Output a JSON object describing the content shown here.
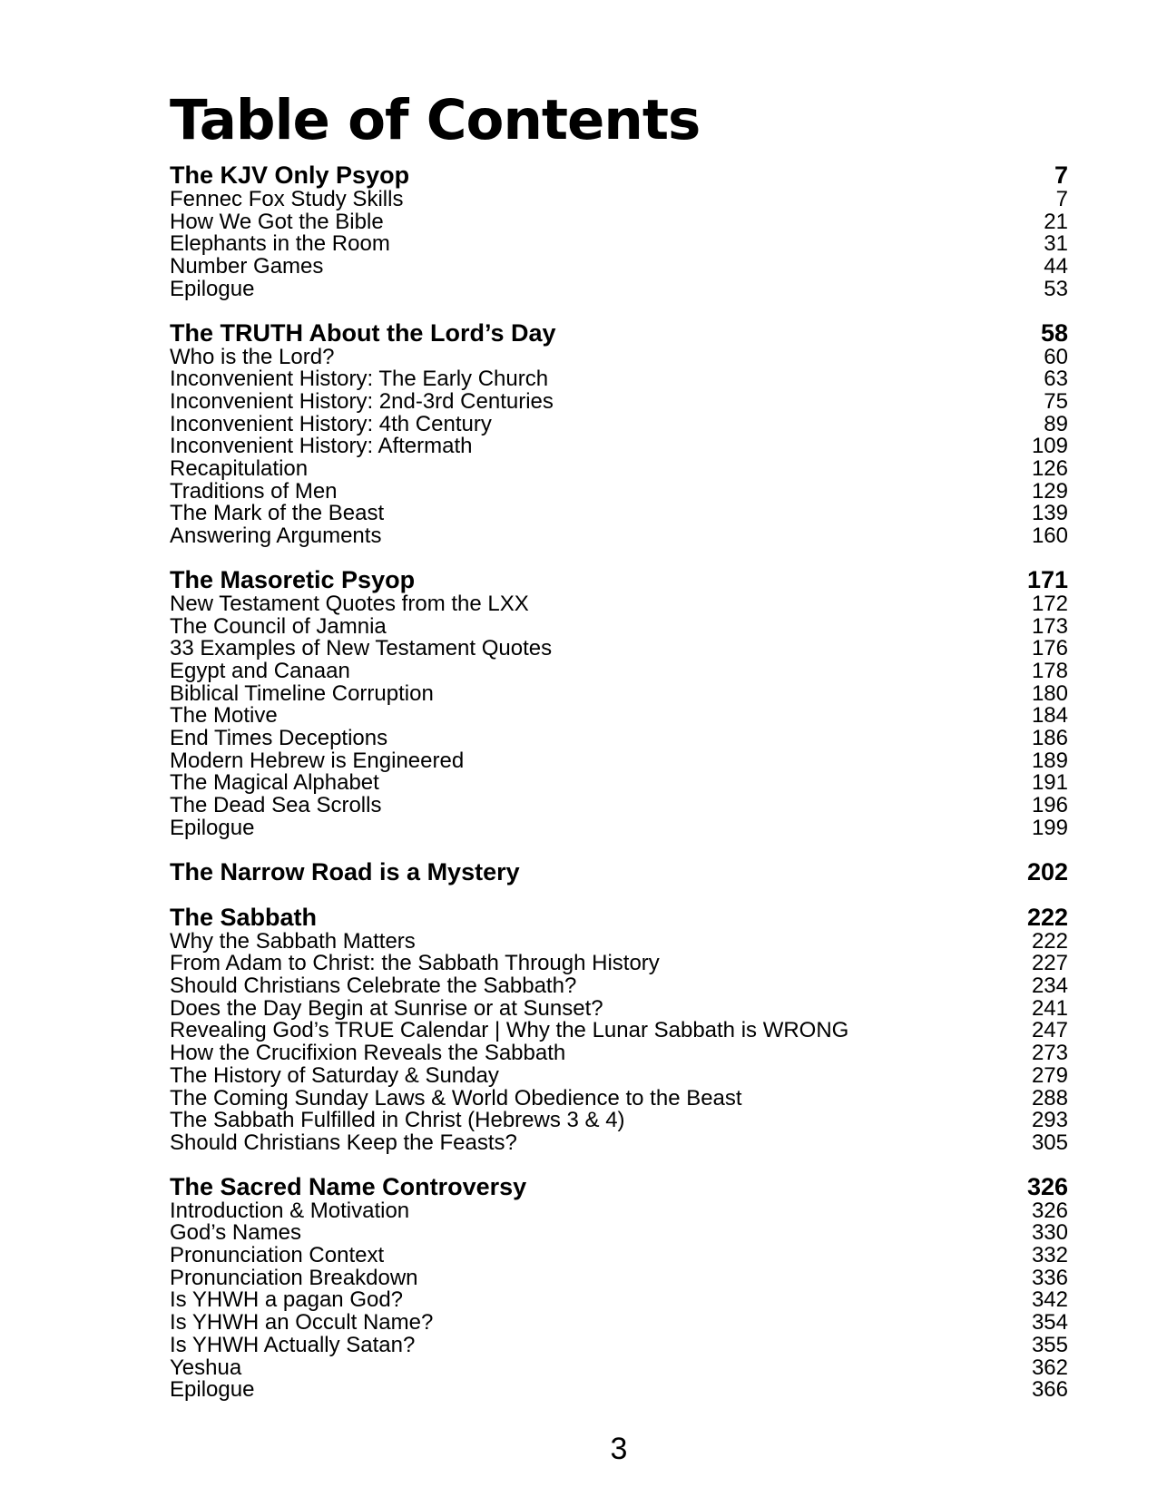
{
  "page": {
    "title": "Table of Contents",
    "footer_page_number": "3",
    "text_color": "#000000",
    "background_color": "#ffffff"
  },
  "toc": {
    "sections": [
      {
        "title": "The KJV Only Psyop",
        "page": "7",
        "entries": [
          {
            "label": "Fennec Fox Study Skills",
            "page": "7"
          },
          {
            "label": "How We Got the Bible",
            "page": "21"
          },
          {
            "label": "Elephants in the Room",
            "page": "31"
          },
          {
            "label": "Number Games",
            "page": "44"
          },
          {
            "label": "Epilogue",
            "page": "53"
          }
        ]
      },
      {
        "title": "The TRUTH About the Lord’s Day",
        "page": "58",
        "entries": [
          {
            "label": "Who is the Lord?",
            "page": "60"
          },
          {
            "label": "Inconvenient History: The Early Church",
            "page": "63"
          },
          {
            "label": "Inconvenient History: 2nd-3rd Centuries",
            "page": "75"
          },
          {
            "label": "Inconvenient History: 4th Century",
            "page": "89"
          },
          {
            "label": "Inconvenient History: Aftermath",
            "page": "109"
          },
          {
            "label": "Recapitulation",
            "page": "126"
          },
          {
            "label": "Traditions of Men",
            "page": "129"
          },
          {
            "label": "The Mark of the Beast",
            "page": "139"
          },
          {
            "label": "Answering Arguments",
            "page": "160"
          }
        ]
      },
      {
        "title": "The Masoretic Psyop",
        "page": "171",
        "entries": [
          {
            "label": "New Testament Quotes from the LXX",
            "page": "172"
          },
          {
            "label": "The Council of Jamnia",
            "page": "173"
          },
          {
            "label": "33 Examples of New Testament Quotes",
            "page": "176"
          },
          {
            "label": "Egypt and Canaan",
            "page": "178"
          },
          {
            "label": "Biblical Timeline Corruption",
            "page": "180"
          },
          {
            "label": "The Motive",
            "page": "184"
          },
          {
            "label": "End Times Deceptions",
            "page": "186"
          },
          {
            "label": "Modern Hebrew is Engineered",
            "page": "189"
          },
          {
            "label": "The Magical Alphabet",
            "page": "191"
          },
          {
            "label": "The Dead Sea Scrolls",
            "page": "196"
          },
          {
            "label": "Epilogue",
            "page": "199"
          }
        ]
      },
      {
        "title": "The Narrow Road is a Mystery",
        "page": "202",
        "entries": []
      },
      {
        "title": "The Sabbath",
        "page": "222",
        "entries": [
          {
            "label": "Why the Sabbath Matters",
            "page": "222"
          },
          {
            "label": "From Adam to Christ: the Sabbath Through History",
            "page": "227"
          },
          {
            "label": "Should Christians Celebrate the Sabbath?",
            "page": "234"
          },
          {
            "label": "Does the Day Begin at Sunrise or at Sunset?",
            "page": "241"
          },
          {
            "label": "Revealing God’s TRUE Calendar | Why the Lunar Sabbath is WRONG",
            "page": "247"
          },
          {
            "label": "How the Crucifixion Reveals the Sabbath",
            "page": "273"
          },
          {
            "label": "The History of Saturday & Sunday",
            "page": "279"
          },
          {
            "label": "The Coming Sunday Laws & World Obedience to the Beast",
            "page": "288"
          },
          {
            "label": "The Sabbath Fulfilled in Christ (Hebrews 3 & 4)",
            "page": "293"
          },
          {
            "label": "Should Christians Keep the Feasts?",
            "page": "305"
          }
        ]
      },
      {
        "title": "The Sacred Name Controversy",
        "page": "326",
        "entries": [
          {
            "label": "Introduction & Motivation",
            "page": "326"
          },
          {
            "label": "God’s Names",
            "page": "330"
          },
          {
            "label": "Pronunciation Context",
            "page": "332"
          },
          {
            "label": "Pronunciation Breakdown",
            "page": "336"
          },
          {
            "label": "Is YHWH a pagan God?",
            "page": "342"
          },
          {
            "label": "Is YHWH an Occult Name?",
            "page": "354"
          },
          {
            "label": "Is YHWH Actually Satan?",
            "page": "355"
          },
          {
            "label": "Yeshua",
            "page": "362"
          },
          {
            "label": "Epilogue",
            "page": "366"
          }
        ]
      }
    ]
  }
}
